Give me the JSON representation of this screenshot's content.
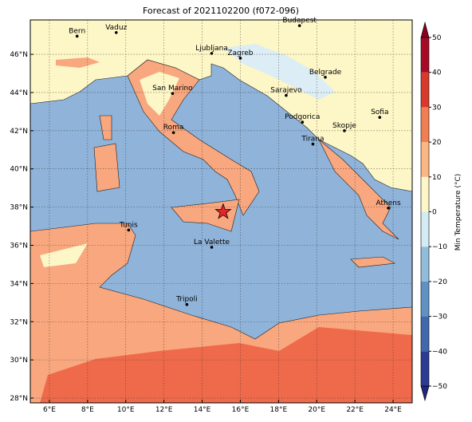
{
  "chart_data": {
    "type": "map",
    "title": "Forecast of 2021102200 (f072-096)",
    "xlim": [
      5,
      25
    ],
    "ylim": [
      27.75,
      47.8
    ],
    "xticks": [
      {
        "value": 6,
        "label": "6°E"
      },
      {
        "value": 8,
        "label": "8°E"
      },
      {
        "value": 10,
        "label": "10°E"
      },
      {
        "value": 12,
        "label": "12°E"
      },
      {
        "value": 14,
        "label": "14°E"
      },
      {
        "value": 16,
        "label": "16°E"
      },
      {
        "value": 18,
        "label": "18°E"
      },
      {
        "value": 20,
        "label": "20°E"
      },
      {
        "value": 22,
        "label": "22°E"
      },
      {
        "value": 24,
        "label": "24°E"
      }
    ],
    "yticks": [
      {
        "value": 28,
        "label": "28°N"
      },
      {
        "value": 30,
        "label": "30°N"
      },
      {
        "value": 32,
        "label": "32°N"
      },
      {
        "value": 34,
        "label": "34°N"
      },
      {
        "value": 36,
        "label": "36°N"
      },
      {
        "value": 38,
        "label": "38°N"
      },
      {
        "value": 40,
        "label": "40°N"
      },
      {
        "value": 42,
        "label": "42°N"
      },
      {
        "value": 44,
        "label": "44°N"
      },
      {
        "value": 46,
        "label": "46°N"
      }
    ],
    "grid": true,
    "cities": [
      {
        "name": "Bern",
        "lon": 7.45,
        "lat": 46.95
      },
      {
        "name": "Vaduz",
        "lon": 9.5,
        "lat": 47.14
      },
      {
        "name": "Budapest",
        "lon": 19.1,
        "lat": 47.5
      },
      {
        "name": "Ljubljana",
        "lon": 14.5,
        "lat": 46.05
      },
      {
        "name": "Zagreb",
        "lon": 16.0,
        "lat": 45.8
      },
      {
        "name": "Belgrade",
        "lon": 20.45,
        "lat": 44.8
      },
      {
        "name": "Sarajevo",
        "lon": 18.4,
        "lat": 43.85
      },
      {
        "name": "San Marino",
        "lon": 12.45,
        "lat": 43.95
      },
      {
        "name": "Sofia",
        "lon": 23.3,
        "lat": 42.7
      },
      {
        "name": "Podgorica",
        "lon": 19.25,
        "lat": 42.45
      },
      {
        "name": "Skopje",
        "lon": 21.45,
        "lat": 42.0
      },
      {
        "name": "Roma",
        "lon": 12.5,
        "lat": 41.9
      },
      {
        "name": "Tirana",
        "lon": 19.8,
        "lat": 41.3
      },
      {
        "name": "Athens",
        "lon": 23.75,
        "lat": 37.95
      },
      {
        "name": "Tunis",
        "lon": 10.15,
        "lat": 36.8
      },
      {
        "name": "La Valette",
        "lon": 14.5,
        "lat": 35.9
      },
      {
        "name": "Tripoli",
        "lon": 13.2,
        "lat": 32.9
      }
    ],
    "marker": {
      "lon": 15.1,
      "lat": 37.75,
      "color": "#e8262a"
    },
    "colorbar": {
      "label": "Min Temperature (°C)",
      "lim": [
        -50,
        50
      ],
      "ticks": [
        {
          "value": -50,
          "label": "−50"
        },
        {
          "value": -40,
          "label": "−40"
        },
        {
          "value": -30,
          "label": "−30"
        },
        {
          "value": -20,
          "label": "−20"
        },
        {
          "value": -10,
          "label": "−10"
        },
        0,
        10,
        20,
        30,
        40,
        50
      ],
      "colors": [
        "#2b3a93",
        "#3f68ad",
        "#5f91c3",
        "#91bcdb",
        "#d3ebf3",
        "#fdf6c6",
        "#fbb783",
        "#f07e52",
        "#d73a2b",
        "#a50b27"
      ],
      "under_color": "#20287a",
      "over_color": "#8a0020"
    }
  }
}
